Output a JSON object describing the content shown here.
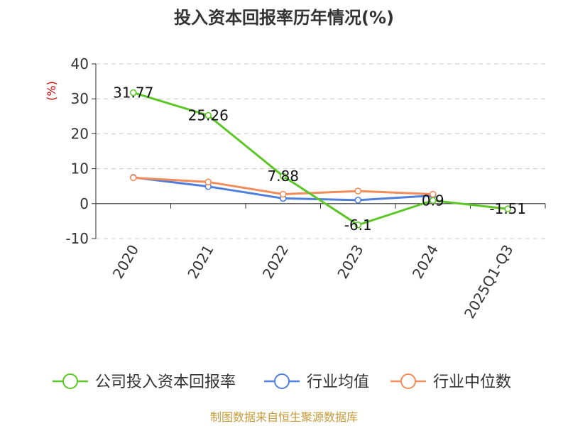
{
  "chart_data": {
    "type": "line",
    "title": "投入资本回报率历年情况(%)",
    "ylabel": "(%)",
    "categories": [
      "2020",
      "2021",
      "2022",
      "2023",
      "2024",
      "2025Q1-Q3"
    ],
    "ylim": [
      -10,
      40
    ],
    "yticks": [
      40,
      30,
      20,
      10,
      0,
      -10
    ],
    "grid": true,
    "legend_position": "bottom",
    "series": [
      {
        "name": "公司投入资本回报率",
        "color": "#5cc626",
        "values": [
          31.77,
          25.26,
          7.88,
          -6.1,
          0.9,
          -1.51
        ],
        "labels": [
          "31.77",
          "25.26",
          "7.88",
          "-6.1",
          "0.9",
          "-1.51"
        ]
      },
      {
        "name": "行业均值",
        "color": "#4e7fdc",
        "values": [
          7.5,
          4.9,
          1.5,
          1.0,
          2.3,
          null
        ]
      },
      {
        "name": "行业中位数",
        "color": "#f28c5a",
        "values": [
          7.4,
          6.2,
          2.7,
          3.6,
          2.7,
          null
        ]
      }
    ]
  },
  "source": "制图数据来自恒生聚源数据库"
}
